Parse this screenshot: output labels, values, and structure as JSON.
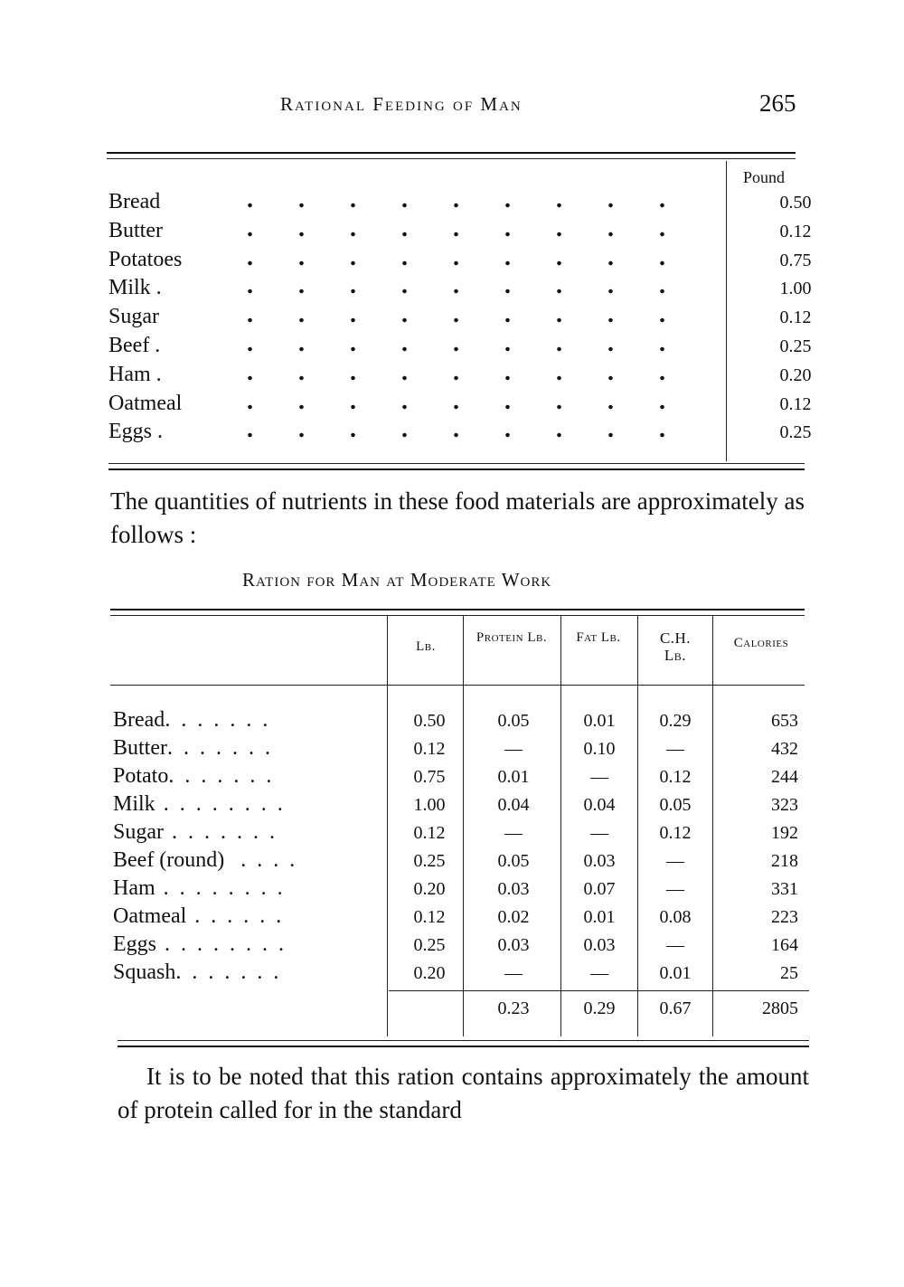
{
  "header": {
    "running_title": "Rational Feeding of Man",
    "page_number": "265"
  },
  "table1": {
    "unit_header": "Pound",
    "rows": [
      {
        "food": "Bread",
        "amount": "0.50"
      },
      {
        "food": "Butter",
        "amount": "0.12"
      },
      {
        "food": "Potatoes",
        "amount": "0.75"
      },
      {
        "food": "Milk .",
        "amount": "1.00"
      },
      {
        "food": "Sugar",
        "amount": "0.12"
      },
      {
        "food": "Beef .",
        "amount": "0.25"
      },
      {
        "food": "Ham .",
        "amount": "0.20"
      },
      {
        "food": "Oatmeal",
        "amount": "0.12"
      },
      {
        "food": "Eggs .",
        "amount": "0.25"
      }
    ]
  },
  "paragraph1": "The quantities of nutrients in these food materials are approximately as follows :",
  "table2": {
    "title": "Ration for Man at Moderate Work",
    "headers": {
      "lb": "Lb.",
      "protein": "Protein Lb.",
      "fat": "Fat Lb.",
      "ch": "C.H. Lb.",
      "calories": "Calories"
    },
    "rows": [
      {
        "food": "Bread",
        "dots": ". . . . . . .",
        "lb": "0.50",
        "protein": "0.05",
        "fat": "0.01",
        "ch": "0.29",
        "calories": "653"
      },
      {
        "food": "Butter",
        "dots": ". . . . . . .",
        "lb": "0.12",
        "protein": "—",
        "fat": "0.10",
        "ch": "—",
        "calories": "432"
      },
      {
        "food": "Potato",
        "dots": ". . . . . . .",
        "lb": "0.75",
        "protein": "0.01",
        "fat": "—",
        "ch": "0.12",
        "calories": "244"
      },
      {
        "food": "Milk",
        "dots": " . . . . . . . .",
        "lb": "1.00",
        "protein": "0.04",
        "fat": "0.04",
        "ch": "0.05",
        "calories": "323"
      },
      {
        "food": "Sugar",
        "dots": " . . . . . . .",
        "lb": "0.12",
        "protein": "—",
        "fat": "—",
        "ch": "0.12",
        "calories": "192"
      },
      {
        "food": "Beef (round)",
        "dots": "  . . . .",
        "lb": "0.25",
        "protein": "0.05",
        "fat": "0.03",
        "ch": "—",
        "calories": "218"
      },
      {
        "food": "Ham",
        "dots": " . . . . . . . .",
        "lb": "0.20",
        "protein": "0.03",
        "fat": "0.07",
        "ch": "—",
        "calories": "331"
      },
      {
        "food": "Oatmeal",
        "dots": " . . . . . .",
        "lb": "0.12",
        "protein": "0.02",
        "fat": "0.01",
        "ch": "0.08",
        "calories": "223"
      },
      {
        "food": "Eggs",
        "dots": " . . . . . . . .",
        "lb": "0.25",
        "protein": "0.03",
        "fat": "0.03",
        "ch": "—",
        "calories": "164"
      },
      {
        "food": "Squash",
        "dots": ". . . . . . .",
        "lb": "0.20",
        "protein": "—",
        "fat": "—",
        "ch": "0.01",
        "calories": "25"
      }
    ],
    "totals": {
      "protein": "0.23",
      "fat": "0.29",
      "ch": "0.67",
      "calories": "2805"
    }
  },
  "paragraph2": "It is to be noted that this ration contains approximately the amount of protein called for in the standard"
}
